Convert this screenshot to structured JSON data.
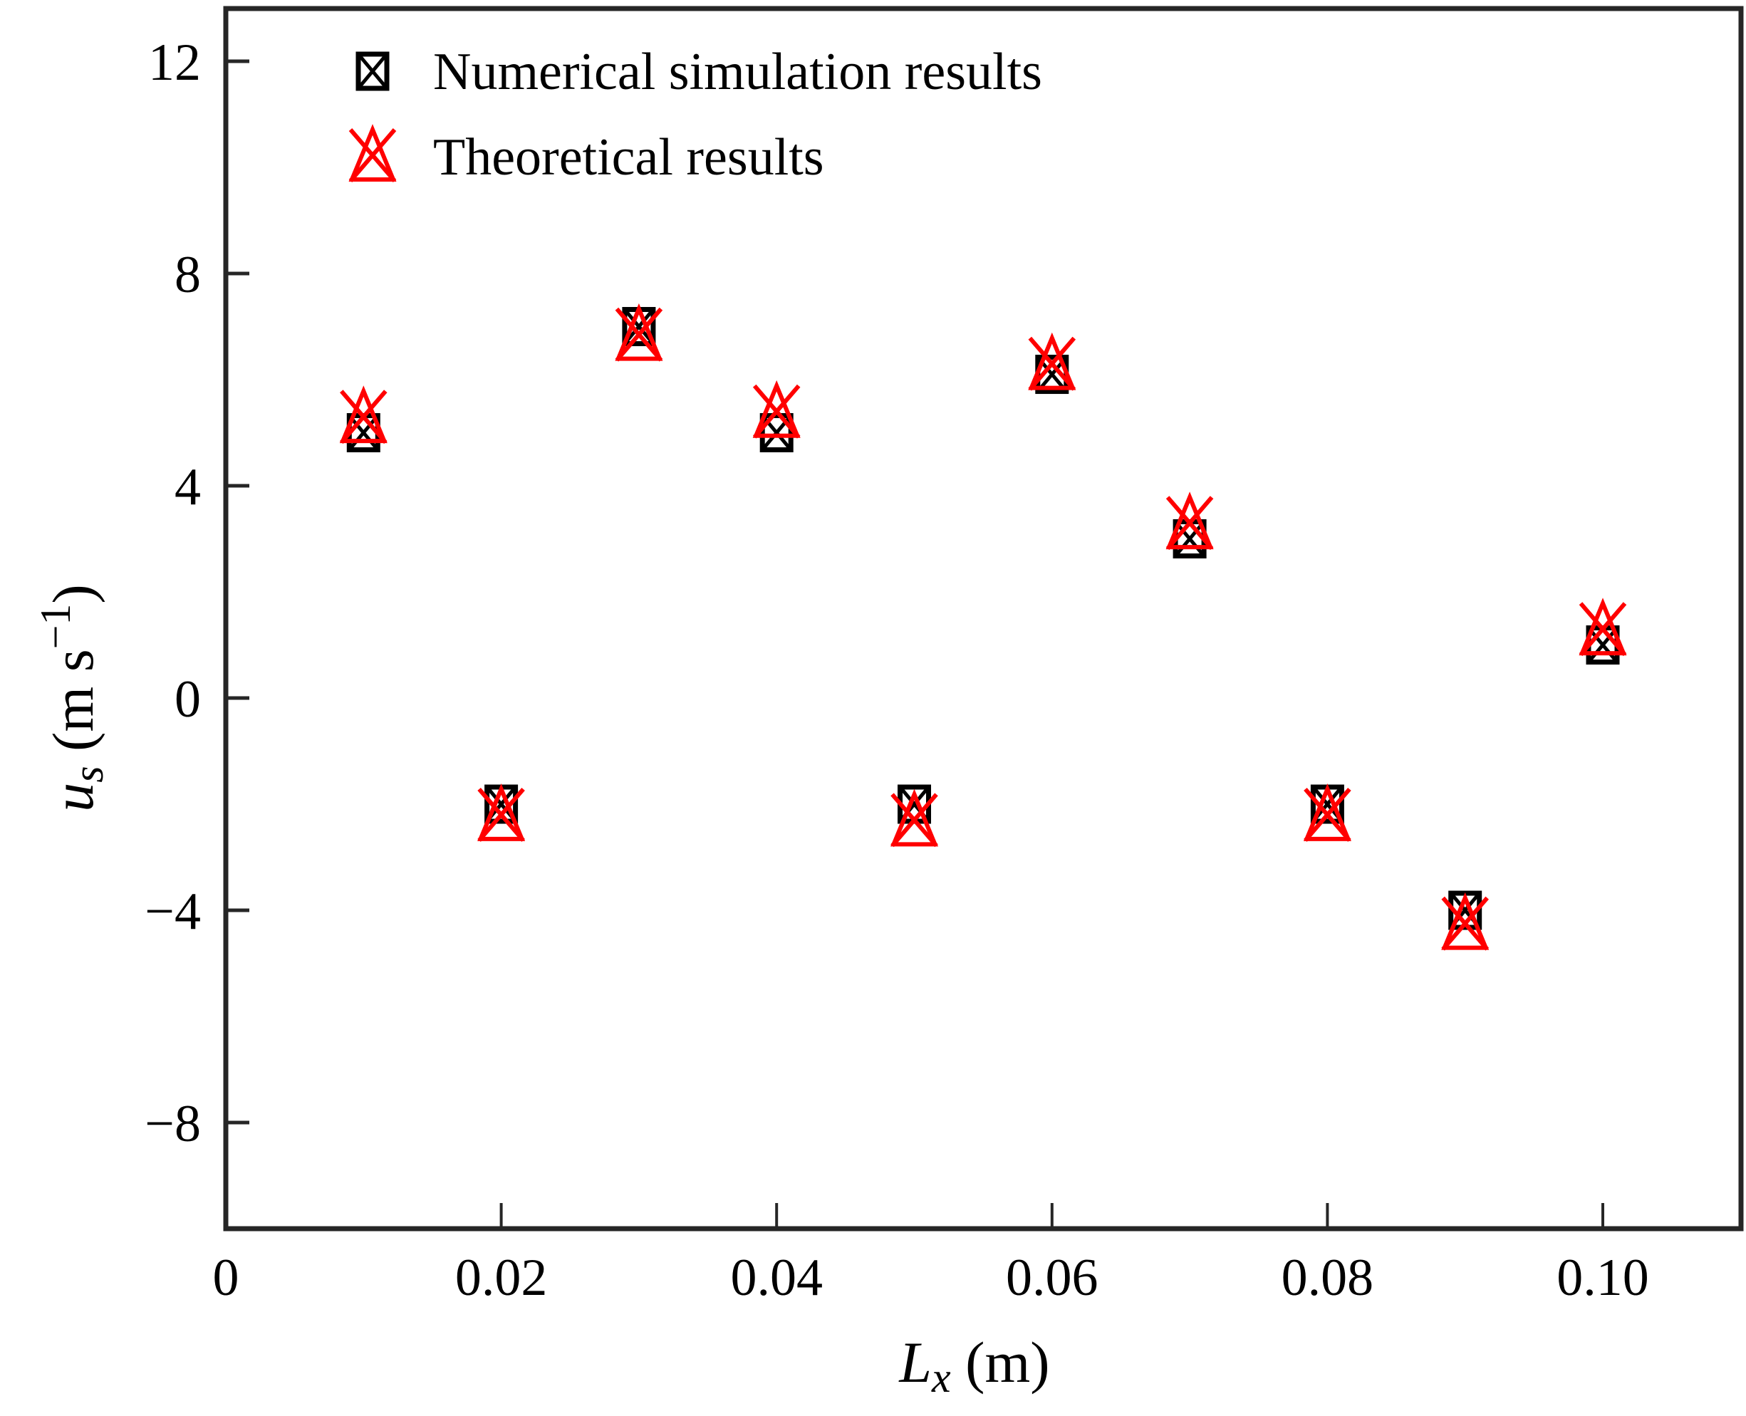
{
  "chart_data": {
    "type": "scatter",
    "title": "",
    "xlabel": "L_x (m)",
    "xlabel_main": "L",
    "xlabel_sub": "x",
    "xlabel_unit": " (m)",
    "ylabel": "u_s (m s^-1)",
    "ylabel_main": "u",
    "ylabel_sub": "s",
    "ylabel_unit": " (m s",
    "ylabel_sup": "−1",
    "ylabel_close": ")",
    "xlim": [
      0,
      0.11
    ],
    "ylim": [
      -10,
      13
    ],
    "x_ticks": [
      0,
      0.02,
      0.04,
      0.06,
      0.08,
      0.1
    ],
    "x_tick_labels": [
      "0",
      "0.02",
      "0.04",
      "0.06",
      "0.08",
      "0.10"
    ],
    "y_ticks": [
      12,
      8,
      4,
      0,
      -4,
      -8
    ],
    "y_tick_labels": [
      "12",
      "8",
      "4",
      "0",
      "−4",
      "−8"
    ],
    "grid": false,
    "legend_position": "upper left",
    "x": [
      0.01,
      0.02,
      0.03,
      0.04,
      0.05,
      0.06,
      0.07,
      0.08,
      0.09,
      0.1
    ],
    "series": [
      {
        "name": "Numerical simulation results",
        "marker": "square-with-x",
        "color": "#000000",
        "values": [
          5.0,
          -2.0,
          7.0,
          5.0,
          -2.0,
          6.1,
          3.0,
          -2.0,
          -4.0,
          1.0
        ]
      },
      {
        "name": "Theoretical results",
        "marker": "triangle-with-x",
        "color": "#ff0000",
        "values": [
          5.3,
          -2.2,
          6.85,
          5.4,
          -2.3,
          6.3,
          3.3,
          -2.2,
          -4.25,
          1.3
        ]
      }
    ]
  },
  "legend": {
    "items": [
      {
        "label": "Numerical simulation results"
      },
      {
        "label": "Theoretical results"
      }
    ]
  }
}
